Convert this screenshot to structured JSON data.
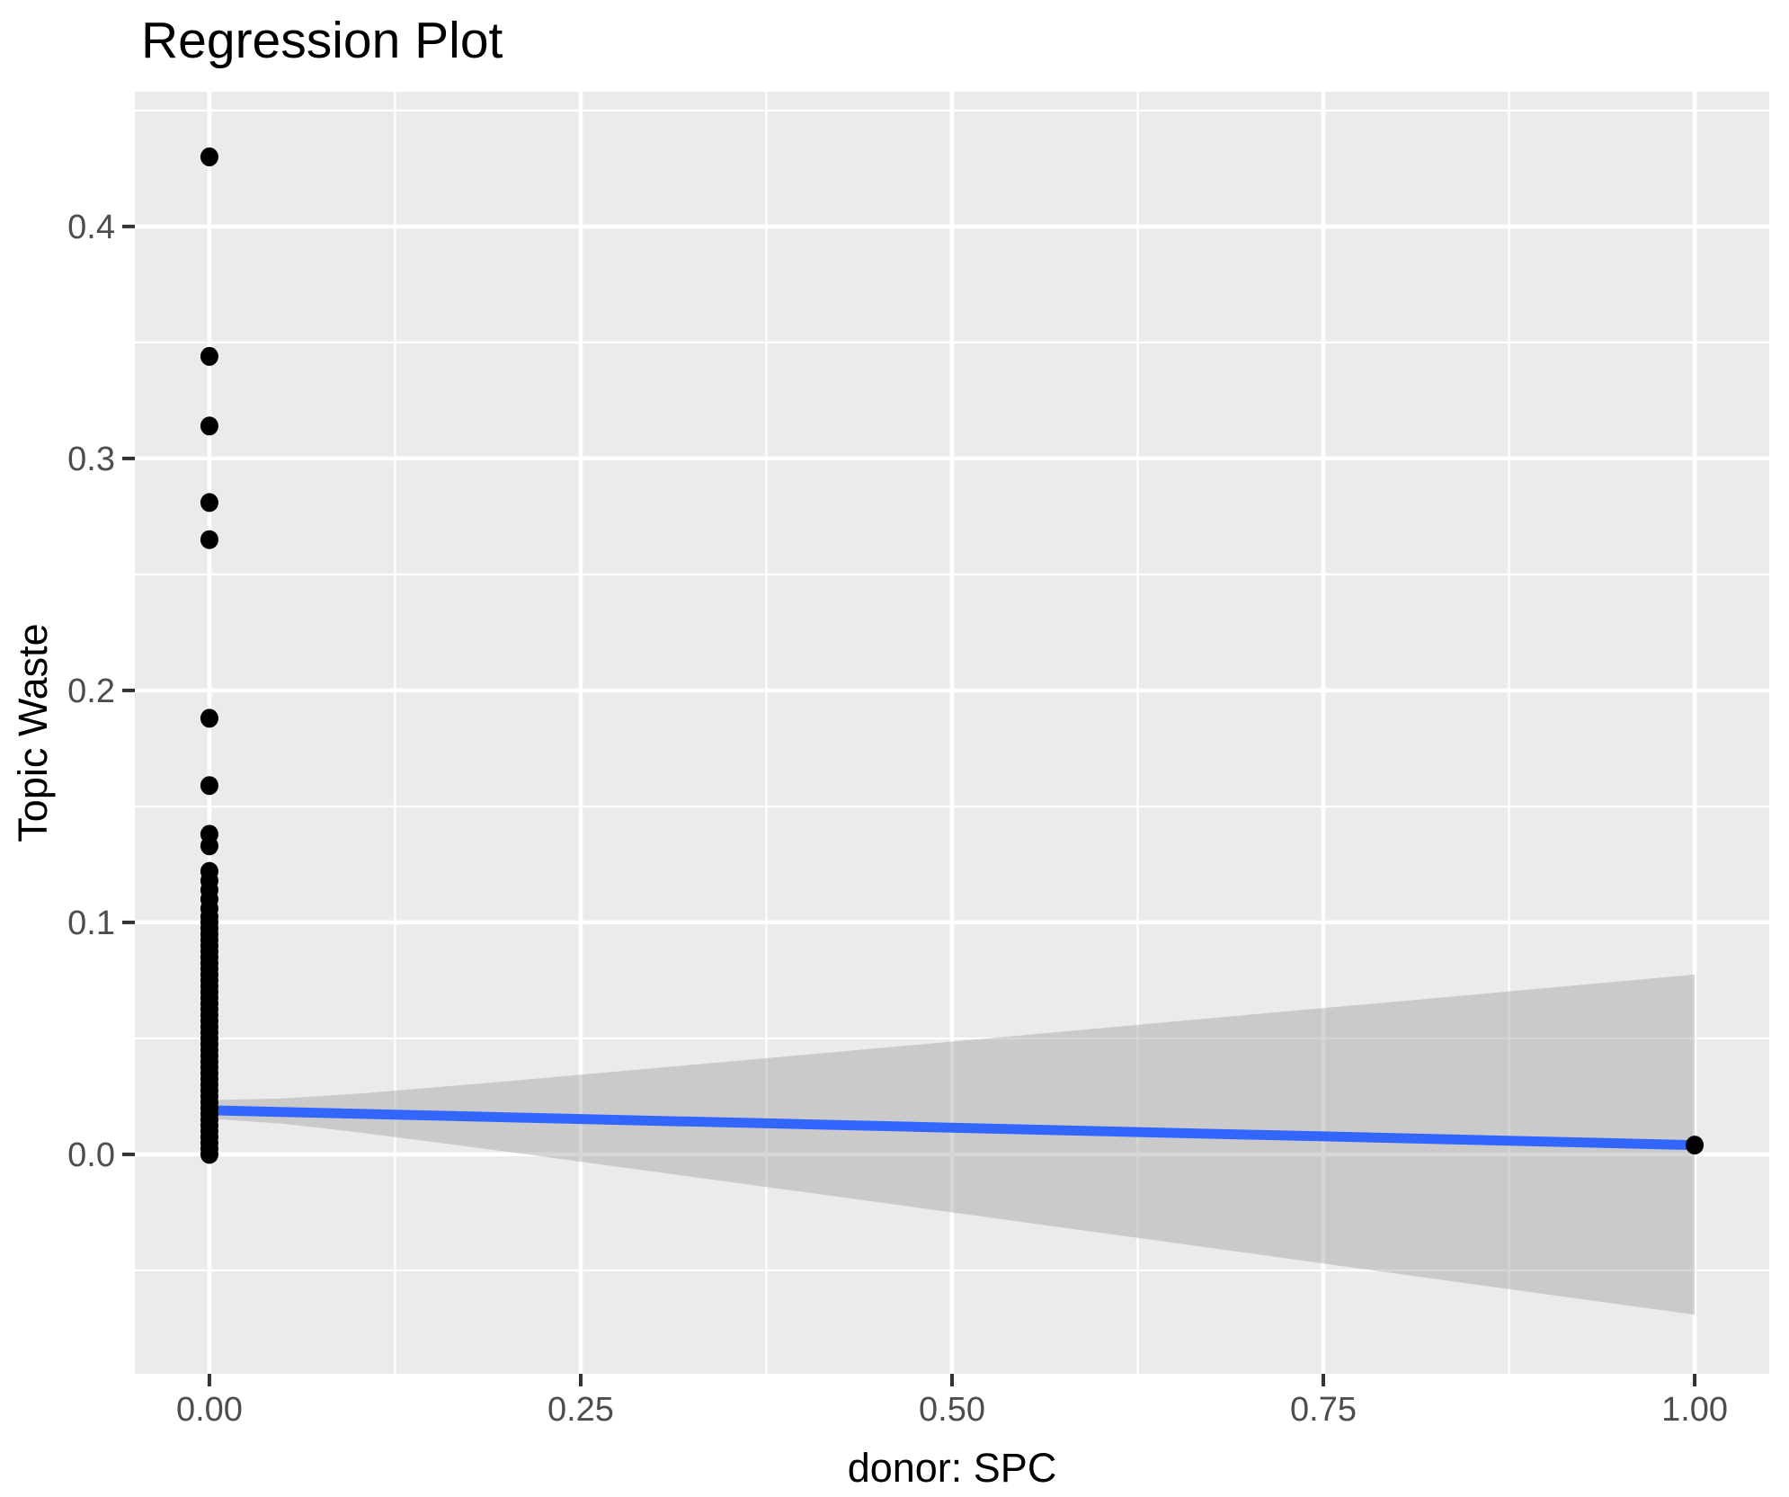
{
  "title": "Regression Plot",
  "x_axis": {
    "label": "donor: SPC",
    "tick_labels": [
      "0.00",
      "0.25",
      "0.50",
      "0.75",
      "1.00"
    ],
    "tick_values": [
      0,
      0.25,
      0.5,
      0.75,
      1.0
    ],
    "minor_tick_values": [
      0.125,
      0.375,
      0.625,
      0.875
    ],
    "range": [
      -0.0502,
      1.0502
    ]
  },
  "y_axis": {
    "label": "Topic Waste",
    "tick_labels": [
      "0.0",
      "0.1",
      "0.2",
      "0.3",
      "0.4"
    ],
    "tick_values": [
      0,
      0.1,
      0.2,
      0.3,
      0.4
    ],
    "minor_tick_values": [
      -0.05,
      0.05,
      0.15,
      0.25,
      0.35,
      0.45
    ],
    "range": [
      -0.0946,
      0.4581
    ]
  },
  "colors": {
    "panel_background": "#EBEBEB",
    "gridline": "#FFFFFF",
    "ribbon_fill": "#999999",
    "ribbon_opacity": 0.4,
    "regression_line": "#3366FF",
    "point": "#000000",
    "tick_text": "#4D4D4D",
    "tick_mark": "#333333",
    "title_text": "#000000"
  },
  "chart_data": {
    "type": "scatter",
    "title": "Regression Plot",
    "xlabel": "donor: SPC",
    "ylabel": "Topic Waste",
    "xlim": [
      -0.0502,
      1.0502
    ],
    "ylim": [
      -0.0946,
      0.4581
    ],
    "grid": true,
    "legend": false,
    "series": [
      {
        "name": "observations",
        "type": "points",
        "color": "#000000",
        "points": [
          [
            0,
            0.0
          ],
          [
            0,
            0.0025
          ],
          [
            0,
            0.005
          ],
          [
            0,
            0.0075
          ],
          [
            0,
            0.01
          ],
          [
            0,
            0.0125
          ],
          [
            0,
            0.015
          ],
          [
            0,
            0.0175
          ],
          [
            0,
            0.02
          ],
          [
            0,
            0.0225
          ],
          [
            0,
            0.025
          ],
          [
            0,
            0.0275
          ],
          [
            0,
            0.03
          ],
          [
            0,
            0.0325
          ],
          [
            0,
            0.035
          ],
          [
            0,
            0.0375
          ],
          [
            0,
            0.04
          ],
          [
            0,
            0.0425
          ],
          [
            0,
            0.045
          ],
          [
            0,
            0.0475
          ],
          [
            0,
            0.05
          ],
          [
            0,
            0.0525
          ],
          [
            0,
            0.055
          ],
          [
            0,
            0.0575
          ],
          [
            0,
            0.06
          ],
          [
            0,
            0.0625
          ],
          [
            0,
            0.065
          ],
          [
            0,
            0.0675
          ],
          [
            0,
            0.07
          ],
          [
            0,
            0.0725
          ],
          [
            0,
            0.075
          ],
          [
            0,
            0.0775
          ],
          [
            0,
            0.08
          ],
          [
            0,
            0.0825
          ],
          [
            0,
            0.085
          ],
          [
            0,
            0.0875
          ],
          [
            0,
            0.09
          ],
          [
            0,
            0.0925
          ],
          [
            0,
            0.095
          ],
          [
            0,
            0.0975
          ],
          [
            0,
            0.1
          ],
          [
            0,
            0.1025
          ],
          [
            0,
            0.106
          ],
          [
            0,
            0.11
          ],
          [
            0,
            0.114
          ],
          [
            0,
            0.118
          ],
          [
            0,
            0.122
          ],
          [
            0,
            0.133
          ],
          [
            0,
            0.138
          ],
          [
            0,
            0.159
          ],
          [
            0,
            0.188
          ],
          [
            0,
            0.265
          ],
          [
            0,
            0.281
          ],
          [
            0,
            0.314
          ],
          [
            0,
            0.344
          ],
          [
            0,
            0.43
          ],
          [
            1,
            0.004
          ]
        ]
      },
      {
        "name": "regression-line",
        "type": "line",
        "color": "#3366FF",
        "x": [
          0,
          1
        ],
        "y": [
          0.019,
          0.004
        ]
      },
      {
        "name": "confidence-band",
        "type": "ribbon",
        "color": "#999999",
        "opacity": 0.4,
        "x": [
          0,
          0.05,
          0.1,
          0.15,
          0.2,
          0.3,
          0.4,
          0.5,
          0.6,
          0.7,
          0.8,
          0.9,
          1.0
        ],
        "upper": [
          0.0234,
          0.0241,
          0.0262,
          0.0288,
          0.0315,
          0.0372,
          0.0429,
          0.0486,
          0.0544,
          0.0602,
          0.0659,
          0.0717,
          0.0775
        ],
        "lower": [
          0.0154,
          0.0132,
          0.0095,
          0.0054,
          0.0012,
          -0.0075,
          -0.0162,
          -0.025,
          -0.0338,
          -0.0426,
          -0.0515,
          -0.0603,
          -0.0691
        ]
      }
    ]
  }
}
